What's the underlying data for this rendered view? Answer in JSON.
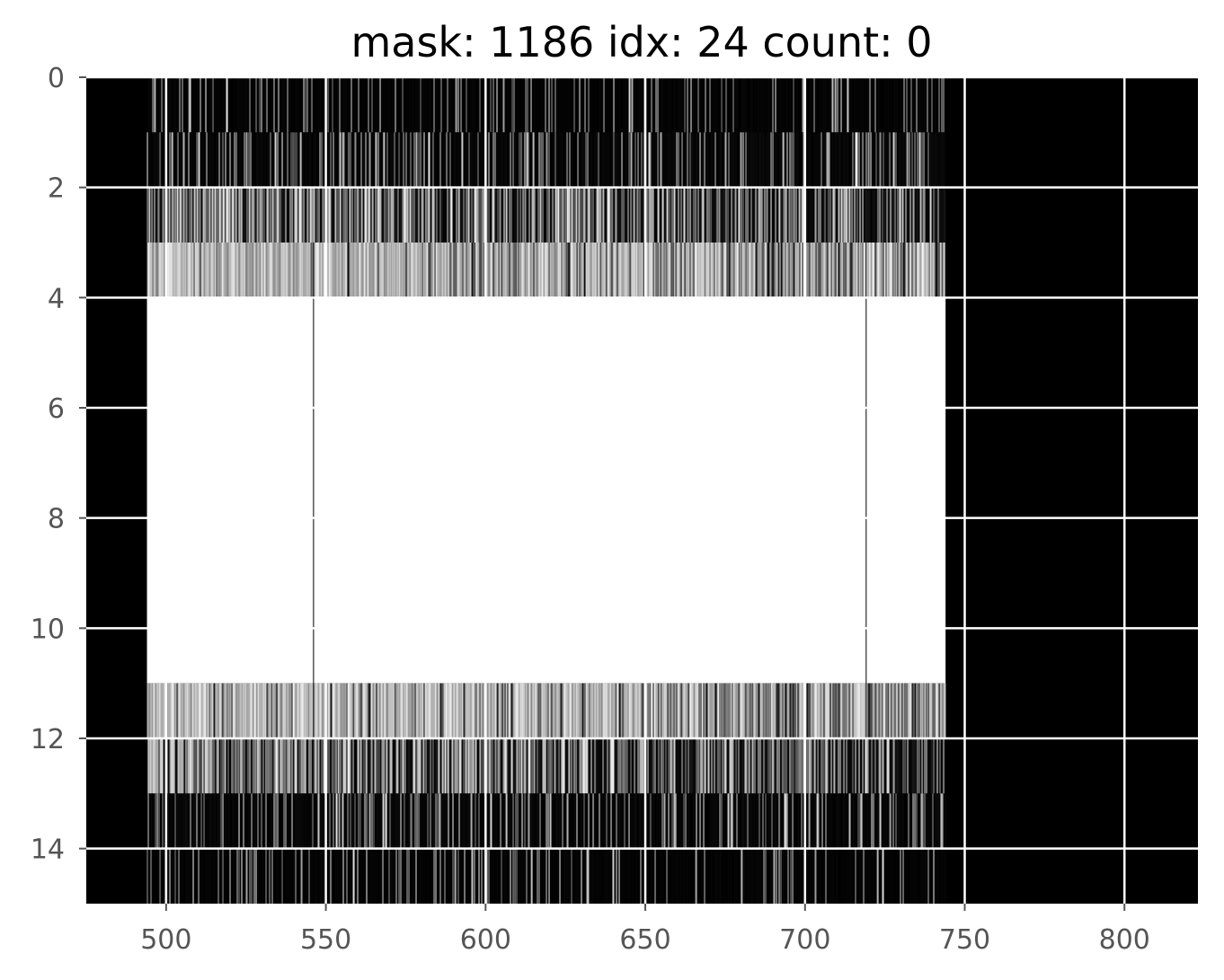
{
  "chart_data": {
    "type": "heatmap",
    "title": "mask: 1186 idx: 24 count: 0",
    "xlabel": "",
    "ylabel": "",
    "xlim": [
      475,
      823
    ],
    "ylim": [
      15,
      0
    ],
    "grid": true,
    "colormap": "gray",
    "x_ticks": [
      500,
      550,
      600,
      650,
      700,
      750,
      800
    ],
    "y_ticks": [
      0,
      2,
      4,
      6,
      8,
      10,
      12,
      14
    ],
    "x_tick_labels": [
      "500",
      "550",
      "600",
      "650",
      "700",
      "750",
      "800"
    ],
    "y_tick_labels": [
      "0",
      "2",
      "4",
      "6",
      "8",
      "10",
      "12",
      "14"
    ],
    "mask_x_range": [
      494,
      744
    ],
    "row_bands": [
      {
        "rows": [
          0,
          1
        ],
        "mean_intensity": 0.12
      },
      {
        "rows": [
          1,
          2
        ],
        "mean_intensity": 0.2
      },
      {
        "rows": [
          2,
          3
        ],
        "mean_intensity": 0.45
      },
      {
        "rows": [
          3,
          4
        ],
        "mean_intensity": 0.85
      },
      {
        "rows": [
          4,
          11
        ],
        "mean_intensity": 1.0
      },
      {
        "rows": [
          11,
          12
        ],
        "mean_intensity": 0.85
      },
      {
        "rows": [
          12,
          13
        ],
        "mean_intensity": 0.45
      },
      {
        "rows": [
          13,
          14
        ],
        "mean_intensity": 0.2
      },
      {
        "rows": [
          14,
          15
        ],
        "mean_intensity": 0.12
      }
    ],
    "dark_columns_in_core": [
      546,
      719
    ],
    "colors": {
      "background": "#000000",
      "mask_fill": "#ffffff",
      "grid": "#ffffff",
      "tick_text": "#555555"
    }
  }
}
